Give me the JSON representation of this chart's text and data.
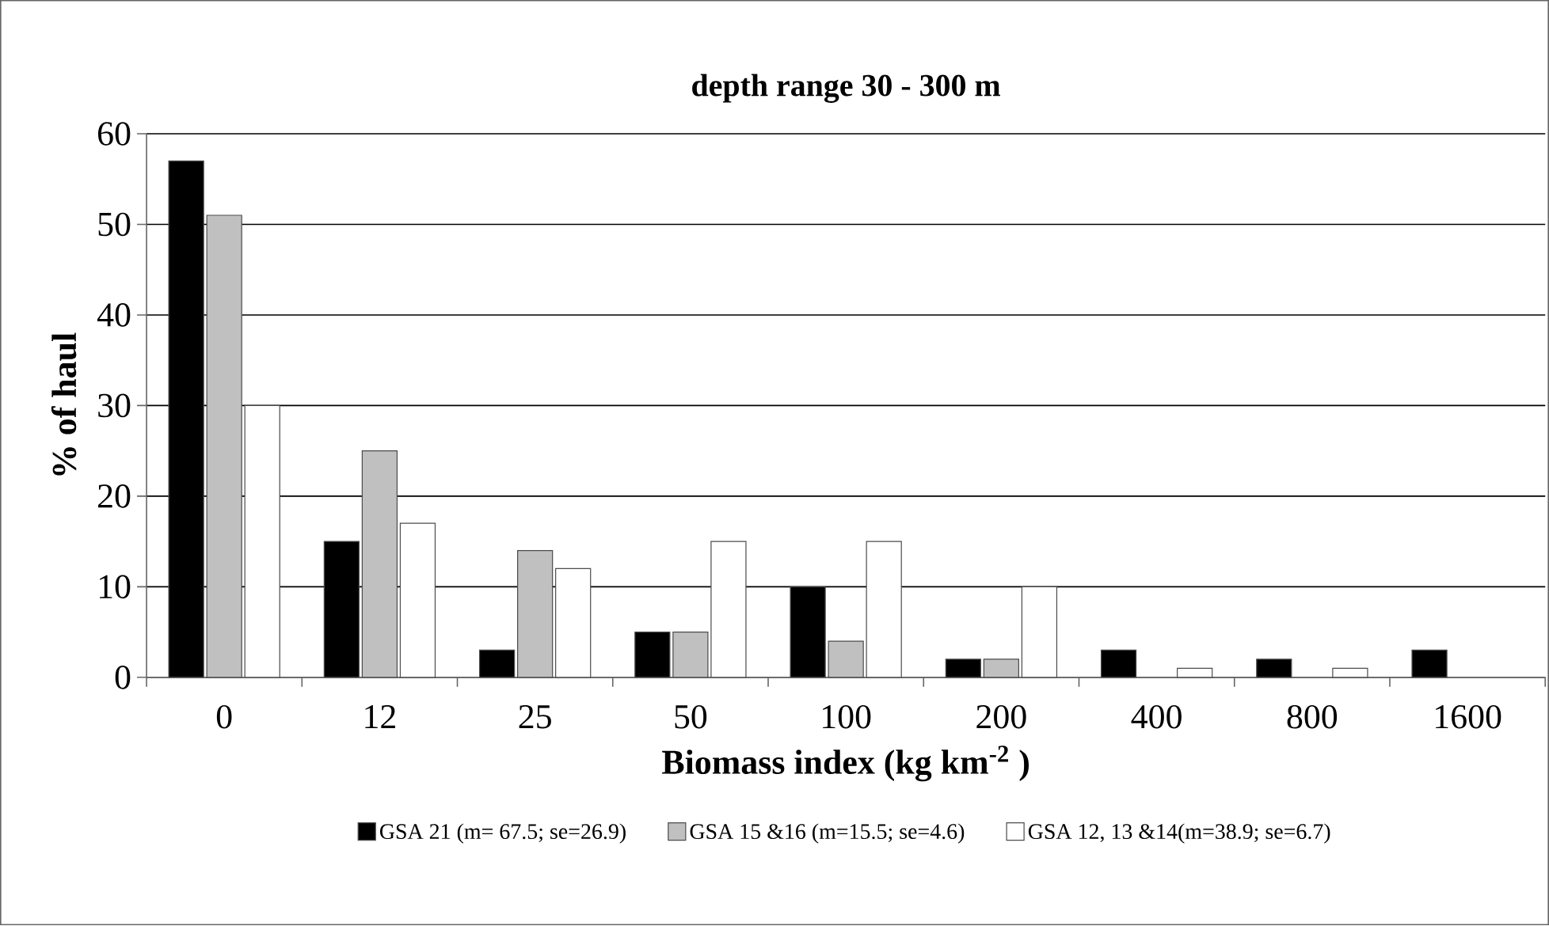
{
  "chart_data": {
    "type": "bar",
    "title": "depth range 30  - 300 m",
    "xlabel": "Biomass index (kg km$^{-2}$ )",
    "ylabel": "% of haul",
    "categories": [
      "0",
      "12",
      "25",
      "50",
      "100",
      "200",
      "400",
      "800",
      "1600"
    ],
    "series": [
      {
        "name": "GSA 21 (m= 67.5;  se=26.9)",
        "color": "#000000",
        "values": [
          57,
          15,
          3,
          5,
          10,
          2,
          3,
          2,
          3
        ]
      },
      {
        "name": "GSA 15 &16 (m=15.5; se=4.6)",
        "color": "#c0c0c0",
        "values": [
          51,
          25,
          14,
          5,
          4,
          2,
          null,
          null,
          null
        ]
      },
      {
        "name": "GSA 12, 13 &14(m=38.9; se=6.7)",
        "color": "#ffffff",
        "values": [
          30,
          17,
          12,
          15,
          15,
          10,
          1,
          1,
          null
        ]
      }
    ],
    "ylim": [
      0,
      60
    ],
    "yticks": [
      0,
      10,
      20,
      30,
      40,
      50,
      60
    ],
    "grid": "y",
    "legend": "bottom"
  }
}
